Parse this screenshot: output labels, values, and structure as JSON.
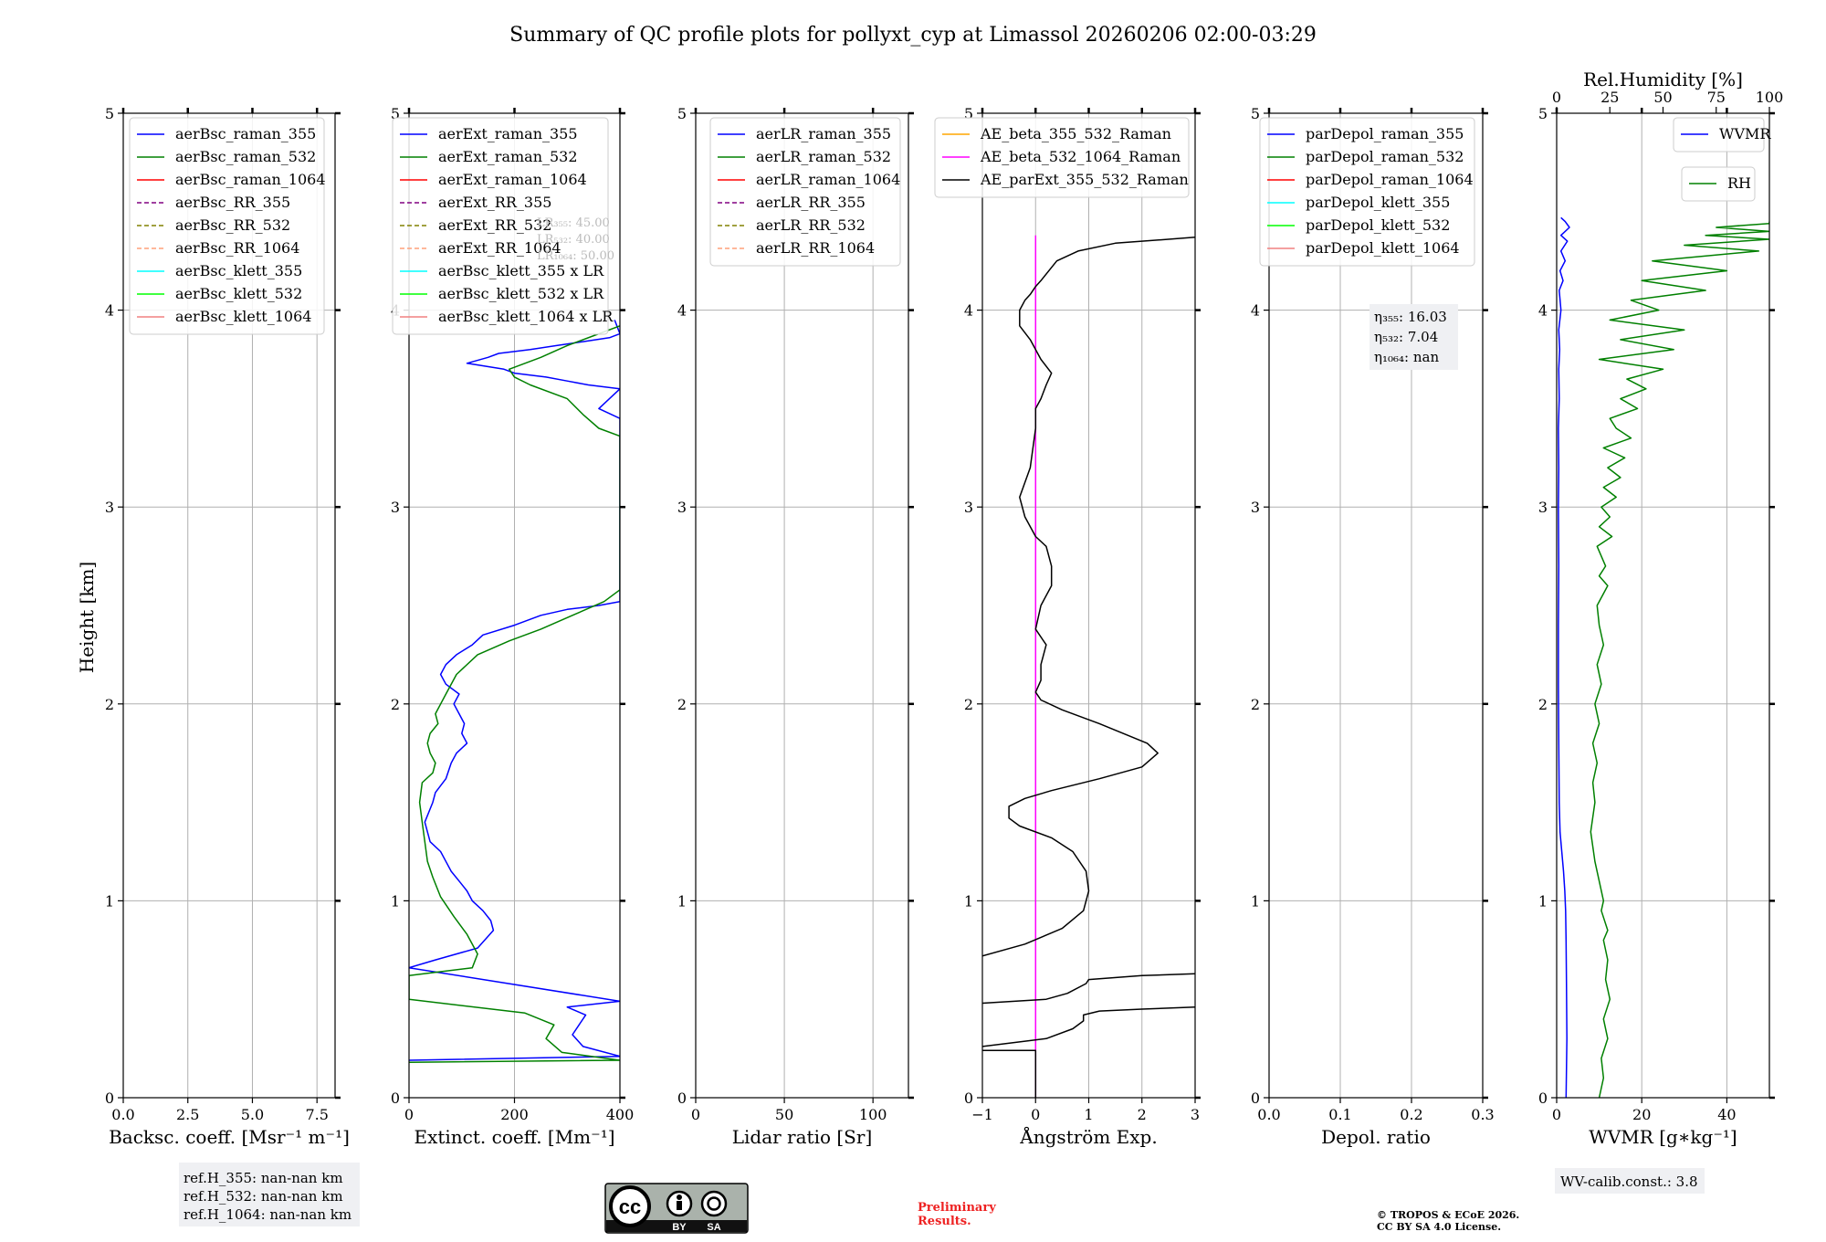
{
  "title": "Summary of QC profile plots for pollyxt_cyp at Limassol 20260206 02:00-03:29",
  "ylabel": "Height [km]",
  "y_ticks": [
    "0",
    "1",
    "2",
    "3",
    "4",
    "5"
  ],
  "colors": {
    "blue": "#0000ff",
    "green": "#008000",
    "red": "#ff0000",
    "purple": "#800080",
    "olive": "#808000",
    "salmon": "#ffa07a",
    "cyan": "#00ffff",
    "lime": "#00ff00",
    "lightcoral": "#f08080",
    "orange": "#ffa500",
    "magenta": "#ff00ff",
    "black": "#000000",
    "prelim_red": "#ee2222"
  },
  "chart_data": [
    {
      "type": "line",
      "id": "bsc",
      "xlabel": "Backsc. coeff. [Msr⁻¹ m⁻¹]",
      "xlim": [
        0,
        8.2
      ],
      "ylim": [
        0,
        5
      ],
      "x_ticks": [
        0,
        2.5,
        5,
        7.5
      ],
      "x_tick_labels": [
        "0.0",
        "2.5",
        "5.0",
        "7.5"
      ],
      "legend": [
        {
          "label": "aerBsc_raman_355",
          "color": "blue",
          "dash": false
        },
        {
          "label": "aerBsc_raman_532",
          "color": "green",
          "dash": false
        },
        {
          "label": "aerBsc_raman_1064",
          "color": "red",
          "dash": false
        },
        {
          "label": "aerBsc_RR_355",
          "color": "purple",
          "dash": true
        },
        {
          "label": "aerBsc_RR_532",
          "color": "olive",
          "dash": true
        },
        {
          "label": "aerBsc_RR_1064",
          "color": "salmon",
          "dash": true
        },
        {
          "label": "aerBsc_klett_355",
          "color": "cyan",
          "dash": false
        },
        {
          "label": "aerBsc_klett_532",
          "color": "lime",
          "dash": false
        },
        {
          "label": "aerBsc_klett_1064",
          "color": "lightcoral",
          "dash": false
        }
      ],
      "series": []
    },
    {
      "type": "line",
      "id": "ext",
      "xlabel": "Extinct. coeff. [Mm⁻¹]",
      "xlim": [
        0,
        400
      ],
      "ylim": [
        0,
        5
      ],
      "x_ticks": [
        0,
        200,
        400
      ],
      "x_tick_labels": [
        "0",
        "200",
        "400"
      ],
      "legend": [
        {
          "label": "aerExt_raman_355",
          "color": "blue",
          "dash": false
        },
        {
          "label": "aerExt_raman_532",
          "color": "green",
          "dash": false
        },
        {
          "label": "aerExt_raman_1064",
          "color": "red",
          "dash": false
        },
        {
          "label": "aerExt_RR_355",
          "color": "purple",
          "dash": true
        },
        {
          "label": "aerExt_RR_532",
          "color": "olive",
          "dash": true
        },
        {
          "label": "aerExt_RR_1064",
          "color": "salmon",
          "dash": true
        },
        {
          "label": "aerBsc_klett_355 x LR",
          "color": "cyan",
          "dash": false
        },
        {
          "label": "aerBsc_klett_532 x LR",
          "color": "lime",
          "dash": false
        },
        {
          "label": "aerBsc_klett_1064 x LR",
          "color": "lightcoral",
          "dash": false
        }
      ],
      "series": [
        {
          "name": "aerExt_raman_355",
          "color": "blue",
          "x": [
            0,
            400,
            330,
            310,
            335,
            300,
            400,
            0,
            50,
            130,
            160,
            155,
            140,
            120,
            110,
            95,
            80,
            70,
            60,
            40,
            30,
            45,
            50,
            70,
            80,
            90,
            110,
            100,
            105,
            95,
            85,
            95,
            70,
            60,
            70,
            90,
            120,
            140,
            200,
            250,
            300,
            360,
            400,
            400,
            360,
            380,
            400,
            340,
            300,
            260,
            200,
            180,
            110,
            150,
            170,
            230,
            280,
            330,
            380,
            400,
            390
          ],
          "y": [
            0.19,
            0.21,
            0.26,
            0.32,
            0.42,
            0.46,
            0.49,
            0.66,
            0.7,
            0.76,
            0.85,
            0.9,
            0.95,
            1.0,
            1.05,
            1.1,
            1.15,
            1.2,
            1.25,
            1.3,
            1.4,
            1.5,
            1.55,
            1.62,
            1.7,
            1.75,
            1.8,
            1.85,
            1.9,
            1.95,
            2.0,
            2.05,
            2.1,
            2.15,
            2.2,
            2.25,
            2.3,
            2.35,
            2.4,
            2.45,
            2.48,
            2.5,
            2.52,
            3.45,
            3.5,
            3.55,
            3.6,
            3.62,
            3.64,
            3.66,
            3.68,
            3.7,
            3.73,
            3.76,
            3.78,
            3.8,
            3.82,
            3.84,
            3.86,
            3.88,
            3.95
          ]
        },
        {
          "name": "aerExt_raman_532",
          "color": "green",
          "x": [
            0,
            400,
            290,
            260,
            275,
            220,
            0,
            0,
            120,
            130,
            110,
            85,
            60,
            45,
            35,
            30,
            25,
            20,
            25,
            45,
            50,
            40,
            35,
            40,
            55,
            50,
            70,
            90,
            130,
            190,
            250,
            310,
            370,
            400,
            400,
            360,
            330,
            300,
            230,
            200,
            190,
            250,
            300,
            360,
            400
          ],
          "y": [
            0.18,
            0.19,
            0.23,
            0.3,
            0.37,
            0.43,
            0.5,
            0.62,
            0.66,
            0.73,
            0.83,
            0.92,
            1.02,
            1.12,
            1.2,
            1.3,
            1.4,
            1.5,
            1.6,
            1.65,
            1.7,
            1.75,
            1.8,
            1.85,
            1.9,
            1.95,
            2.05,
            2.15,
            2.25,
            2.32,
            2.38,
            2.45,
            2.52,
            2.58,
            3.36,
            3.4,
            3.47,
            3.55,
            3.62,
            3.66,
            3.7,
            3.76,
            3.82,
            3.88,
            3.92
          ]
        }
      ],
      "annotation": [
        {
          "label": "LR₃₅₅: 45.00",
          "color": "#bbbbbb"
        },
        {
          "label": "LR₅₃₂: 40.00",
          "color": "#bbbbbb"
        },
        {
          "label": "LR₁₀₆₄: 50.00",
          "color": "#bbbbbb"
        }
      ]
    },
    {
      "type": "line",
      "id": "lr",
      "xlabel": "Lidar ratio [Sr]",
      "xlim": [
        0,
        120
      ],
      "ylim": [
        0,
        5
      ],
      "x_ticks": [
        0,
        50,
        100
      ],
      "x_tick_labels": [
        "0",
        "50",
        "100"
      ],
      "legend": [
        {
          "label": "aerLR_raman_355",
          "color": "blue",
          "dash": false
        },
        {
          "label": "aerLR_raman_532",
          "color": "green",
          "dash": false
        },
        {
          "label": "aerLR_raman_1064",
          "color": "red",
          "dash": false
        },
        {
          "label": "aerLR_RR_355",
          "color": "purple",
          "dash": true
        },
        {
          "label": "aerLR_RR_532",
          "color": "olive",
          "dash": true
        },
        {
          "label": "aerLR_RR_1064",
          "color": "salmon",
          "dash": true
        }
      ],
      "series": []
    },
    {
      "type": "line",
      "id": "ae",
      "xlabel": "Ångström Exp.",
      "xlim": [
        -1,
        3
      ],
      "ylim": [
        0,
        5
      ],
      "x_ticks": [
        -1,
        0,
        1,
        2,
        3
      ],
      "x_tick_labels": [
        "−1",
        "0",
        "1",
        "2",
        "3"
      ],
      "legend": [
        {
          "label": "AE_beta_355_532_Raman",
          "color": "orange",
          "dash": false
        },
        {
          "label": "AE_beta_532_1064_Raman",
          "color": "magenta",
          "dash": false
        },
        {
          "label": "AE_parExt_355_532_Raman",
          "color": "black",
          "dash": false
        }
      ],
      "series": [
        {
          "name": "AE_beta_532_1064_Raman",
          "color": "magenta",
          "x": [
            0,
            0
          ],
          "y": [
            0,
            4.38
          ]
        },
        {
          "name": "AE_parExt_355_532_Raman",
          "color": "black",
          "part": 1,
          "x": [
            -1,
            0,
            0
          ],
          "y": [
            0.24,
            0.24,
            0
          ]
        },
        {
          "name": "AE_parExt_355_532_Raman",
          "color": "black",
          "part": 2,
          "x": [
            -1,
            0.2,
            0.7,
            0.9,
            0.9,
            1.2,
            2.0,
            3.0
          ],
          "y": [
            0.26,
            0.3,
            0.35,
            0.39,
            0.42,
            0.44,
            0.45,
            0.46
          ]
        },
        {
          "name": "AE_parExt_355_532_Raman",
          "color": "black",
          "part": 3,
          "x": [
            -1,
            0.2,
            0.6,
            0.95,
            1.0,
            2.0,
            3.0
          ],
          "y": [
            0.48,
            0.5,
            0.53,
            0.58,
            0.6,
            0.62,
            0.63
          ]
        },
        {
          "name": "AE_parExt_355_532_Raman",
          "color": "black",
          "part": 4,
          "x": [
            -1,
            -0.2,
            0.5,
            0.9,
            1.0,
            0.95,
            0.7,
            0.3,
            -0.3,
            -0.5,
            -0.5,
            -0.2,
            0.3,
            1.2,
            2.0,
            2.3,
            2.1,
            1.2,
            0.5,
            0.1,
            0.0,
            0.1,
            0.1,
            0.2,
            0.0,
            0.1,
            0.3,
            0.3,
            0.2,
            0.0,
            -0.2,
            -0.3,
            -0.1,
            0.0,
            0.0,
            0.1,
            0.2,
            0.3,
            0.1,
            -0.1,
            -0.3,
            -0.3,
            -0.2,
            -0.1,
            0.0,
            0.1,
            0.4,
            0.8,
            1.5,
            3.0
          ],
          "y": [
            0.72,
            0.78,
            0.86,
            0.95,
            1.05,
            1.15,
            1.25,
            1.32,
            1.38,
            1.42,
            1.48,
            1.52,
            1.56,
            1.62,
            1.68,
            1.75,
            1.8,
            1.9,
            1.97,
            2.02,
            2.06,
            2.12,
            2.2,
            2.3,
            2.38,
            2.5,
            2.6,
            2.7,
            2.8,
            2.85,
            2.95,
            3.05,
            3.2,
            3.4,
            3.5,
            3.55,
            3.62,
            3.68,
            3.75,
            3.85,
            3.92,
            4.0,
            4.05,
            4.08,
            4.12,
            4.15,
            4.25,
            4.3,
            4.34,
            4.37
          ]
        }
      ]
    },
    {
      "type": "line",
      "id": "depol",
      "xlabel": "Depol. ratio",
      "xlim": [
        0,
        0.3
      ],
      "ylim": [
        0,
        5
      ],
      "x_ticks": [
        0,
        0.1,
        0.2,
        0.3
      ],
      "x_tick_labels": [
        "0.0",
        "0.1",
        "0.2",
        "0.3"
      ],
      "legend": [
        {
          "label": "parDepol_raman_355",
          "color": "blue",
          "dash": false
        },
        {
          "label": "parDepol_raman_532",
          "color": "green",
          "dash": false
        },
        {
          "label": "parDepol_raman_1064",
          "color": "red",
          "dash": false
        },
        {
          "label": "parDepol_klett_355",
          "color": "cyan",
          "dash": false
        },
        {
          "label": "parDepol_klett_532",
          "color": "lime",
          "dash": false
        },
        {
          "label": "parDepol_klett_1064",
          "color": "lightcoral",
          "dash": false
        }
      ],
      "series": [],
      "annotation": [
        {
          "label": "η₃₅₅: 16.03",
          "color": "#000000"
        },
        {
          "label": "η₅₃₂: 7.04",
          "color": "#000000"
        },
        {
          "label": "η₁₀₆₄: nan",
          "color": "#000000"
        }
      ]
    },
    {
      "type": "line",
      "id": "wv",
      "xlabel": "WVMR [g∗kg⁻¹]",
      "xlim": [
        0,
        50
      ],
      "ylim": [
        0,
        5
      ],
      "x_ticks": [
        0,
        20,
        40
      ],
      "x_tick_labels": [
        "0",
        "20",
        "40"
      ],
      "top_xlabel": "Rel.Humidity [%]",
      "top_xlim": [
        0,
        100
      ],
      "top_ticks": [
        0,
        25,
        50,
        75,
        100
      ],
      "top_tick_labels": [
        "0",
        "25",
        "50",
        "75",
        "100"
      ],
      "legend": [
        {
          "label": "WVMR",
          "color": "blue",
          "dash": false
        }
      ],
      "legend2": [
        {
          "label": "RH",
          "color": "green",
          "dash": false
        }
      ],
      "series": [
        {
          "name": "WVMR",
          "axis": "bottom",
          "color": "blue",
          "x": [
            2.2,
            2.4,
            2.3,
            2.2,
            2.1,
            1.9,
            1.6,
            1.2,
            0.8,
            0.6,
            0.5,
            0.4,
            0.4,
            0.5,
            0.4,
            0.5,
            0.4,
            0.6,
            0.5,
            0.7,
            0.5,
            1.0,
            0.6,
            1.5,
            0.8,
            2.0,
            1.0,
            2.5,
            1.0,
            3.0,
            2.0,
            1.0
          ],
          "y": [
            0.0,
            0.3,
            0.6,
            0.8,
            0.95,
            1.05,
            1.15,
            1.25,
            1.35,
            1.5,
            1.8,
            2.1,
            2.4,
            2.7,
            3.0,
            3.2,
            3.4,
            3.55,
            3.7,
            3.8,
            3.9,
            4.0,
            4.1,
            4.15,
            4.2,
            4.25,
            4.3,
            4.35,
            4.38,
            4.42,
            4.45,
            4.47
          ]
        },
        {
          "name": "RH",
          "axis": "top",
          "color": "green",
          "x": [
            20,
            22,
            21,
            24,
            22,
            25,
            23,
            24,
            22,
            24,
            21,
            22,
            20,
            18,
            16,
            18,
            17,
            19,
            17,
            20,
            18,
            21,
            19,
            22,
            20,
            19,
            24,
            20,
            23,
            19,
            26,
            20,
            25,
            21,
            28,
            22,
            30,
            24,
            32,
            22,
            35,
            28,
            25,
            38,
            30,
            42,
            33,
            50,
            20,
            55,
            30,
            60,
            25,
            48,
            35,
            70,
            40,
            80,
            45,
            95,
            60,
            100,
            70,
            100,
            75,
            100,
            100
          ],
          "y": [
            0.0,
            0.1,
            0.2,
            0.3,
            0.4,
            0.5,
            0.6,
            0.7,
            0.8,
            0.85,
            0.95,
            1.0,
            1.1,
            1.2,
            1.35,
            1.5,
            1.6,
            1.7,
            1.8,
            1.9,
            2.0,
            2.1,
            2.2,
            2.3,
            2.4,
            2.5,
            2.6,
            2.65,
            2.7,
            2.8,
            2.85,
            2.9,
            2.95,
            3.0,
            3.05,
            3.1,
            3.15,
            3.2,
            3.25,
            3.3,
            3.35,
            3.4,
            3.45,
            3.5,
            3.55,
            3.6,
            3.65,
            3.7,
            3.75,
            3.8,
            3.85,
            3.9,
            3.95,
            4.0,
            4.05,
            4.1,
            4.15,
            4.2,
            4.25,
            4.3,
            4.33,
            4.36,
            4.38,
            4.4,
            4.42,
            4.44,
            4.45
          ]
        }
      ]
    }
  ],
  "ref_box": [
    "ref.H_355: nan-nan km",
    "ref.H_532: nan-nan km",
    "ref.H_1064: nan-nan km"
  ],
  "wv_calib": "WV-calib.const.: 3.8",
  "license_badge": {
    "cc": "cc",
    "by": "BY",
    "sa": "SA"
  },
  "preliminary": [
    "Preliminary",
    "Results."
  ],
  "copyright": [
    "© TROPOS & ECoE 2026.",
    "CC BY SA 4.0 License."
  ]
}
